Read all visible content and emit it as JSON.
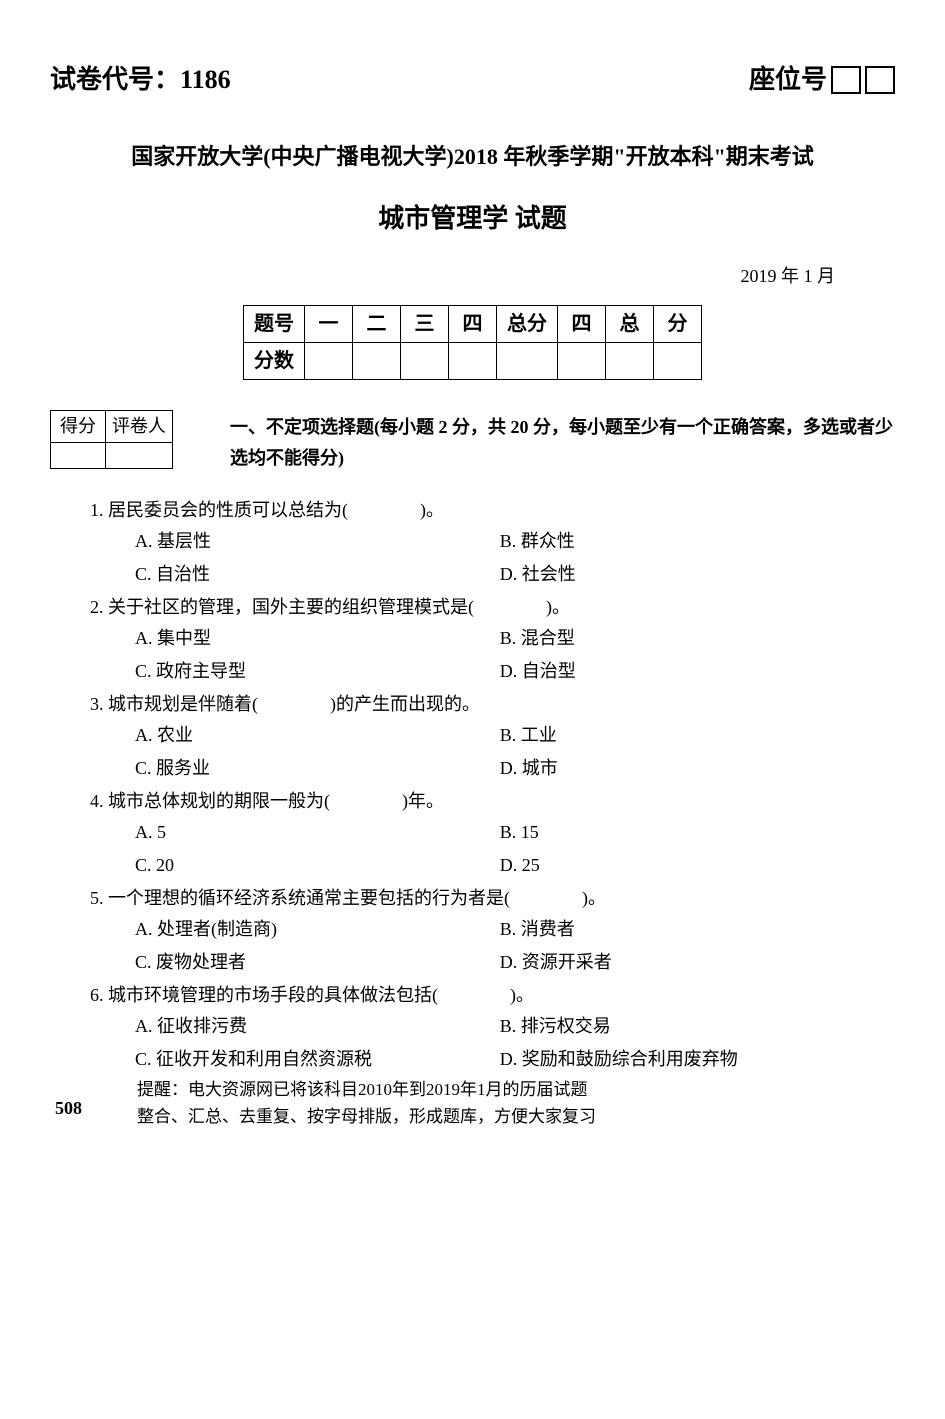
{
  "header": {
    "paper_code_label": "试卷代号：",
    "paper_code_value": "1186",
    "seat_label": "座位号"
  },
  "subtitle": "国家开放大学(中央广播电视大学)2018 年秋季学期\"开放本科\"期末考试",
  "exam_title": "城市管理学  试题",
  "date": "2019 年 1 月",
  "score_table": {
    "row1": [
      "题号",
      "一",
      "二",
      "三",
      "四",
      "总分",
      "四",
      "总",
      "分"
    ],
    "row2_label": "分数"
  },
  "grader_table": {
    "c1": "得分",
    "c2": "评卷人"
  },
  "section1_title": "一、不定项选择题(每小题 2 分，共 20 分，每小题至少有一个正确答案，多选或者少选均不能得分)",
  "questions": [
    {
      "stem": "1. 居民委员会的性质可以总结为(　　　　)。",
      "opts": [
        "A. 基层性",
        "B. 群众性",
        "C. 自治性",
        "D. 社会性"
      ]
    },
    {
      "stem": "2. 关于社区的管理，国外主要的组织管理模式是(　　　　)。",
      "opts": [
        "A. 集中型",
        "B. 混合型",
        "C. 政府主导型",
        "D. 自治型"
      ]
    },
    {
      "stem": "3. 城市规划是伴随着(　　　　)的产生而出现的。",
      "opts": [
        "A. 农业",
        "B. 工业",
        "C. 服务业",
        "D. 城市"
      ]
    },
    {
      "stem": "4. 城市总体规划的期限一般为(　　　　)年。",
      "opts": [
        "A. 5",
        "B. 15",
        "C. 20",
        "D. 25"
      ]
    },
    {
      "stem": "5. 一个理想的循环经济系统通常主要包括的行为者是(　　　　)。",
      "opts": [
        "A. 处理者(制造商)",
        "B. 消费者",
        "C. 废物处理者",
        "D. 资源开采者"
      ]
    },
    {
      "stem": "6. 城市环境管理的市场手段的具体做法包括(　　　　)。",
      "opts": [
        "A. 征收排污费",
        "B. 排污权交易",
        "C. 征收开发和利用自然资源税",
        "D. 奖励和鼓励综合利用废弃物"
      ]
    }
  ],
  "page_num": "508",
  "footer_l1": "提醒：电大资源网已将该科目2010年到2019年1月的历届试题",
  "footer_l2": "整合、汇总、去重复、按字母排版，形成题库，方便大家复习"
}
